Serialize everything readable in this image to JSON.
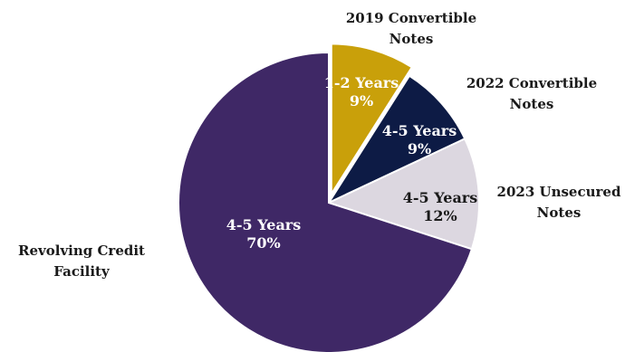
{
  "chart_data": {
    "type": "pie",
    "title": "",
    "slices": [
      {
        "category": "2019 Convertible Notes",
        "category_lines": [
          "2019 Convertible",
          "Notes"
        ],
        "term": "1-2 Years",
        "value": 9,
        "value_label": "9%",
        "color": "#C9A00A",
        "text_color": "#ffffff"
      },
      {
        "category": "2022 Convertible Notes",
        "category_lines": [
          "2022 Convertible",
          "Notes"
        ],
        "term": "4-5 Years",
        "value": 9,
        "value_label": "9%",
        "color": "#0D1B45",
        "text_color": "#ffffff"
      },
      {
        "category": "2023 Unsecured Notes",
        "category_lines": [
          "2023 Unsecured",
          "Notes"
        ],
        "term": "4-5 Years",
        "value": 12,
        "value_label": "12%",
        "color": "#DCD7E0",
        "text_color": "#1a1a1a"
      },
      {
        "category": "Revolving Credit Facility",
        "category_lines": [
          "Revolving Credit",
          "Facility"
        ],
        "term": "4-5 Years",
        "value": 70,
        "value_label": "70%",
        "color": "#3F2866",
        "text_color": "#ffffff"
      }
    ],
    "start_angle_deg": 0,
    "direction": "clockwise",
    "exploded_slice": "2019 Convertible Notes",
    "legend": "none"
  }
}
